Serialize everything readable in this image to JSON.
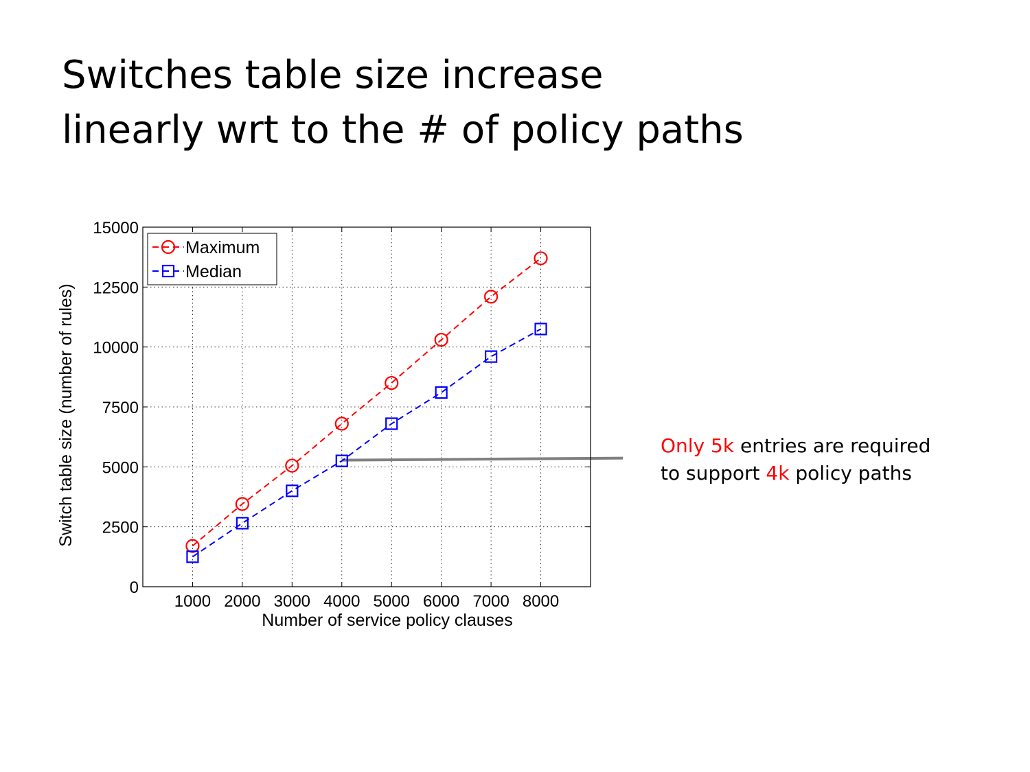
{
  "slide": {
    "title_line1": "Switches table size increase",
    "title_line2": "linearly wrt to the # of policy paths"
  },
  "callout": {
    "line1_highlight": "Only 5k",
    "line1_rest": " entries are required",
    "line2_start": "to support ",
    "line2_highlight": "4k",
    "line2_end": " policy paths",
    "highlight_color": "#ff0000",
    "pointer_color": "#808080"
  },
  "chart_data": {
    "type": "line",
    "title": "",
    "xlabel": "Number of service policy clauses",
    "ylabel": "Switch table size (number of rules)",
    "xlim": [
      0,
      9000
    ],
    "ylim": [
      0,
      15000
    ],
    "x": [
      1000,
      2000,
      3000,
      4000,
      5000,
      6000,
      7000,
      8000
    ],
    "xticks": [
      1000,
      2000,
      3000,
      4000,
      5000,
      6000,
      7000,
      8000
    ],
    "yticks": [
      0,
      2500,
      5000,
      7500,
      10000,
      12500,
      15000
    ],
    "grid": true,
    "legend": "top-left",
    "series": [
      {
        "name": "Maximum",
        "color": "#ff0000",
        "marker": "circle",
        "line": "dashed",
        "values": [
          1700,
          3450,
          5050,
          6800,
          8500,
          10300,
          12100,
          13700
        ]
      },
      {
        "name": "Median",
        "color": "#0000ff",
        "marker": "square",
        "line": "dashed",
        "values": [
          1250,
          2650,
          4000,
          5250,
          6800,
          8100,
          9600,
          10750
        ]
      }
    ],
    "annotation": {
      "x": 4000,
      "y": 5250
    }
  }
}
